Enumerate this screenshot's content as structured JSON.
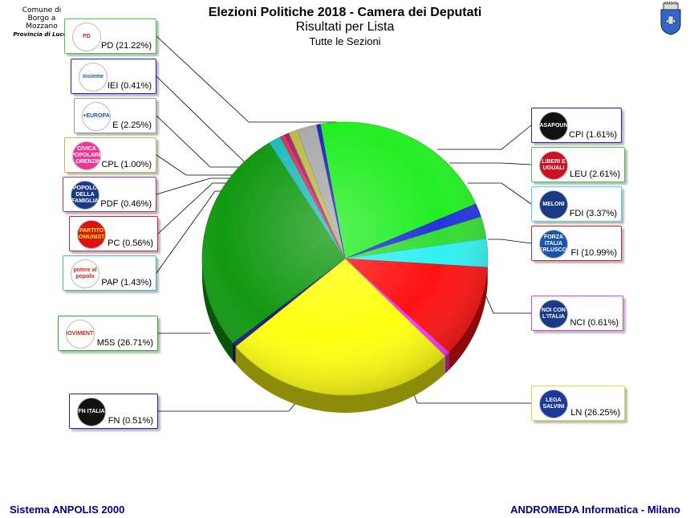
{
  "header": {
    "comune_line1": "Comune di",
    "comune_line2": "Borgo a Mozzano",
    "provincia": "Provincia di Lucca",
    "title": "Elezioni Politiche 2018 - Camera dei Deputati",
    "subtitle": "Risultati per Lista",
    "section": "Tutte le Sezioni"
  },
  "footer": {
    "left": "Sistema ANPOLIS 2000",
    "right": "ANDROMEDA Informatica - Milano"
  },
  "chart_data": {
    "type": "pie",
    "title": "Risultati per Lista",
    "unit": "%",
    "slices": [
      {
        "label": "PD (21.22%)",
        "value": 21.22,
        "color": "#22ee22",
        "logo_text": "PD",
        "logo_icon": "pd-logo-icon"
      },
      {
        "label": "CPI (1.61%)",
        "value": 1.61,
        "color": "#2233dd",
        "logo_text": "CASAPOUND",
        "logo_icon": "cpi-logo-icon"
      },
      {
        "label": "LEU (2.61%)",
        "value": 2.61,
        "color": "#33dd33",
        "logo_text": "LIBERI E UGUALI",
        "logo_icon": "leu-logo-icon"
      },
      {
        "label": "FDI (3.37%)",
        "value": 3.37,
        "color": "#33f0f0",
        "logo_text": "MELONI",
        "logo_icon": "fdi-logo-icon"
      },
      {
        "label": "FI (10.99%)",
        "value": 10.99,
        "color": "#ff1111",
        "logo_text": "FORZA ITALIA BERLUSCONI",
        "logo_icon": "fi-logo-icon"
      },
      {
        "label": "NCI (0.61%)",
        "value": 0.61,
        "color": "#ff33ff",
        "logo_text": "NOI CON L'ITALIA",
        "logo_icon": "nci-logo-icon"
      },
      {
        "label": "LN (26.25%)",
        "value": 26.25,
        "color": "#ffff11",
        "logo_text": "LEGA SALVINI",
        "logo_icon": "ln-logo-icon"
      },
      {
        "label": "FN (0.51%)",
        "value": 0.51,
        "color": "#1a1a80",
        "logo_text": "FN ITALIA",
        "logo_icon": "fn-logo-icon"
      },
      {
        "label": "M5S (26.71%)",
        "value": 26.71,
        "color": "#119911",
        "logo_text": "MOVIMENTO",
        "logo_icon": "m5s-logo-icon"
      },
      {
        "label": "PAP (1.43%)",
        "value": 1.43,
        "color": "#22bbbb",
        "logo_text": "potere al popolo",
        "logo_icon": "pap-logo-icon"
      },
      {
        "label": "PC (0.56%)",
        "value": 0.56,
        "color": "#dd3355",
        "logo_text": "PARTITO COMUNISTA",
        "logo_icon": "pc-logo-icon"
      },
      {
        "label": "PDF (0.46%)",
        "value": 0.46,
        "color": "#aa2277",
        "logo_text": "POPOLO DELLA FAMIGLIA",
        "logo_icon": "pdf-logo-icon"
      },
      {
        "label": "CPL (1.00%)",
        "value": 1.0,
        "color": "#bbbb44",
        "logo_text": "CIVICA POPOLARE LORENZIN",
        "logo_icon": "cpl-logo-icon"
      },
      {
        "label": "E (2.25%)",
        "value": 2.25,
        "color": "#aaaaaa",
        "logo_text": "+EUROPA",
        "logo_icon": "e-logo-icon"
      },
      {
        "label": "IEI (0.41%)",
        "value": 0.41,
        "color": "#2222cc",
        "logo_text": "insieme",
        "logo_icon": "iei-logo-icon"
      }
    ],
    "legend": "boxes around the pie with leader lines"
  }
}
